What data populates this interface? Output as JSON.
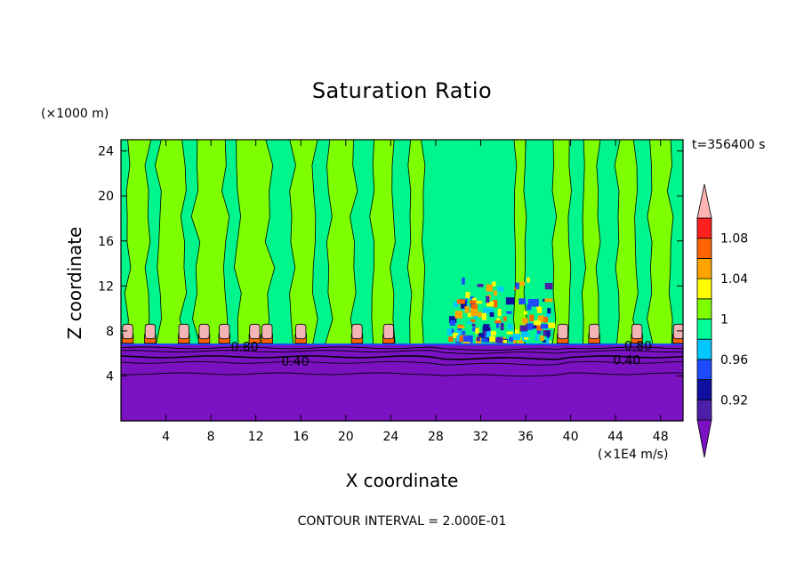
{
  "chart_data": {
    "type": "heatmap",
    "title": "Saturation Ratio",
    "xlabel": "X coordinate",
    "ylabel": "Z coordinate",
    "x_unit": "(×1E4 m/s)",
    "y_unit": "(×1000 m)",
    "time_label": "t=356400 s",
    "footer": "CONTOUR INTERVAL = 2.000E-01",
    "xlim": [
      0,
      50
    ],
    "ylim": [
      0,
      25
    ],
    "x_ticks": [
      4,
      8,
      12,
      16,
      20,
      24,
      28,
      32,
      36,
      40,
      44,
      48
    ],
    "y_ticks": [
      4,
      8,
      12,
      16,
      20,
      24
    ],
    "contour_labels": [
      {
        "text": "0.80",
        "x": 11,
        "z": 6.6
      },
      {
        "text": "0.40",
        "x": 15.5,
        "z": 5.3
      },
      {
        "text": "0.40",
        "x": 45,
        "z": 5.4
      },
      {
        "text": "0.80",
        "x": 46,
        "z": 6.7
      }
    ],
    "colorbar": {
      "levels": [
        0.9,
        0.92,
        0.94,
        0.96,
        0.98,
        1.0,
        1.02,
        1.04,
        1.06,
        1.08,
        1.1
      ],
      "tick_labels": [
        "0.92",
        "0.96",
        "1",
        "1.04",
        "1.08"
      ],
      "tick_values": [
        0.92,
        0.96,
        1.0,
        1.04,
        1.08
      ],
      "colors": [
        "#4b1fa8",
        "#0f0fa0",
        "#1e4bff",
        "#00c8ff",
        "#00ff96",
        "#7dff00",
        "#ffff00",
        "#ffa500",
        "#ff6400",
        "#ff2020"
      ],
      "under_color": "#7a12c2",
      "over_color": "#ffb4b4"
    },
    "regions": {
      "stable_layer_color": "#7a12c2",
      "background_color": "#00f58c",
      "plume_color": "#7dff00",
      "cap_color": "#f2b4b4",
      "surface_top_z": 6.8,
      "plumes": [
        {
          "x": 1.5,
          "w": 1.8
        },
        {
          "x": 4.5,
          "w": 2.2
        },
        {
          "x": 8.0,
          "w": 2.6
        },
        {
          "x": 11.8,
          "w": 2.8
        },
        {
          "x": 16.2,
          "w": 2.0
        },
        {
          "x": 19.6,
          "w": 2.2
        },
        {
          "x": 23.3,
          "w": 1.8
        },
        {
          "x": 26.3,
          "w": 1.2
        },
        {
          "x": 35.5,
          "w": 0.9
        },
        {
          "x": 39.2,
          "w": 1.4
        },
        {
          "x": 41.8,
          "w": 1.3
        },
        {
          "x": 45.0,
          "w": 1.6
        },
        {
          "x": 48.0,
          "w": 1.8
        }
      ],
      "caps": [
        0.6,
        2.6,
        5.6,
        7.4,
        9.2,
        11.9,
        13.0,
        16.0,
        21.0,
        23.8,
        39.3,
        42.1,
        45.9,
        49.6
      ]
    }
  }
}
